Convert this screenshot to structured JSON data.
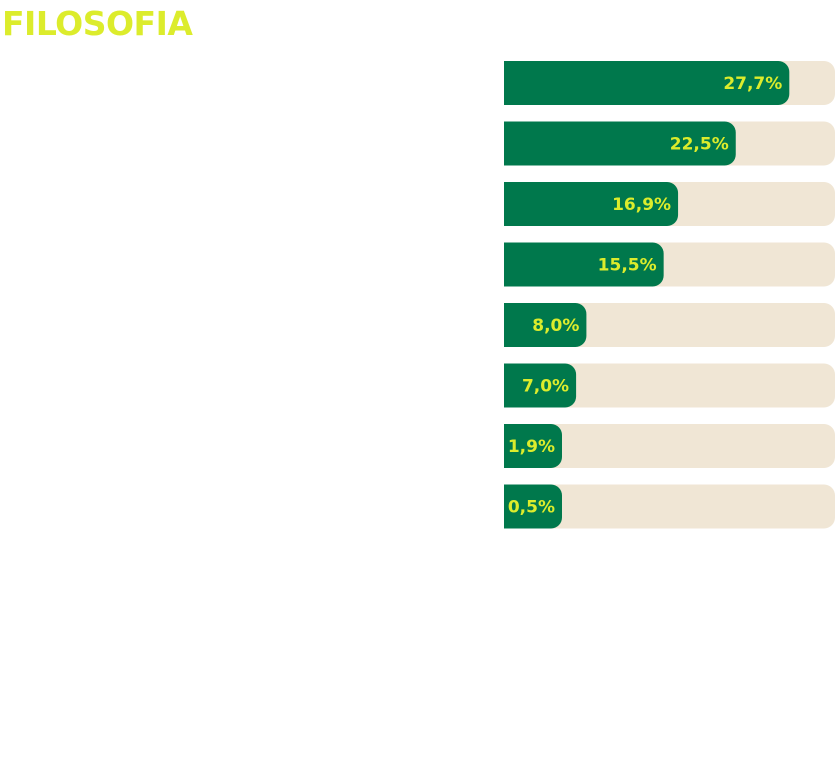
{
  "header": {
    "title": "FILOSOFIA"
  },
  "colors": {
    "bar_fill": "#00784c",
    "track": "#f0e6d5",
    "accent_text": "#dcec2c"
  },
  "chart_data": {
    "type": "bar",
    "orientation": "horizontal",
    "title": "FILOSOFIA",
    "categories": [],
    "values": [
      27.7,
      22.5,
      16.9,
      15.5,
      8.0,
      7.0,
      1.9,
      0.5
    ],
    "labels": [
      "27,7%",
      "22,5%",
      "16,9%",
      "15,5%",
      "8,0%",
      "7,0%",
      "1,9%",
      "0,5%"
    ],
    "unit": "%",
    "grid": false,
    "legend": "none"
  }
}
